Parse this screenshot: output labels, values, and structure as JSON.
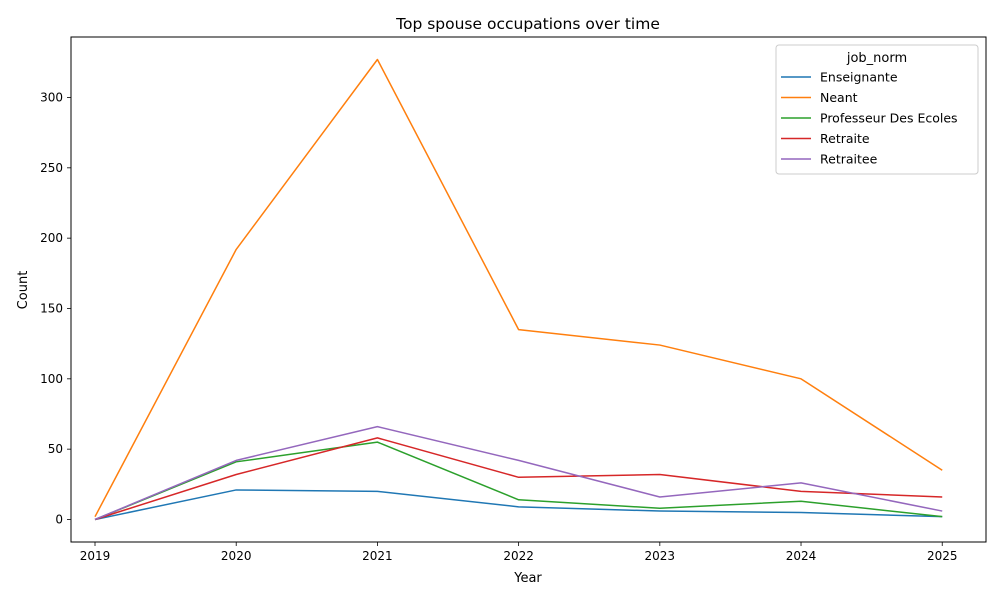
{
  "chart_data": {
    "type": "line",
    "title": "Top spouse occupations over time",
    "xlabel": "Year",
    "ylabel": "Count",
    "x": [
      2019,
      2020,
      2021,
      2022,
      2023,
      2024,
      2025
    ],
    "xlim": [
      2018.83,
      2025.31
    ],
    "ylim": [
      -16,
      343
    ],
    "yticks": [
      0,
      50,
      100,
      150,
      200,
      250,
      300
    ],
    "grid": false,
    "legend_title": "job_norm",
    "legend_position": "top-right",
    "series": [
      {
        "name": "Enseignante",
        "color": "#1f77b4",
        "values": [
          0,
          21,
          20,
          9,
          6,
          5,
          2
        ]
      },
      {
        "name": "Neant",
        "color": "#ff7f0e",
        "values": [
          2,
          192,
          327,
          135,
          124,
          100,
          35
        ]
      },
      {
        "name": "Professeur Des Ecoles",
        "color": "#2ca02c",
        "values": [
          0,
          41,
          55,
          14,
          8,
          13,
          2
        ]
      },
      {
        "name": "Retraite",
        "color": "#d62728",
        "values": [
          0,
          32,
          58,
          30,
          32,
          20,
          16
        ]
      },
      {
        "name": "Retraitee",
        "color": "#9467bd",
        "values": [
          0,
          42,
          66,
          42,
          16,
          26,
          6
        ]
      }
    ]
  }
}
